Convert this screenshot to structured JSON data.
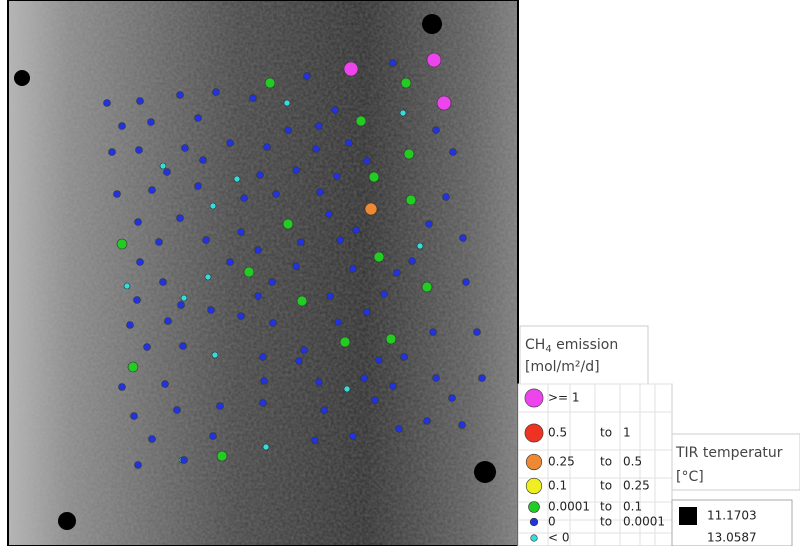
{
  "ch4_legend": {
    "title": "CH",
    "title_subscript": "4",
    "title_rest": " emission",
    "unit": "[mol/m²/d]",
    "classes": [
      {
        "from": ">= 1"
      },
      {
        "from": "0.5",
        "to_word": "to",
        "to": "1"
      },
      {
        "from": "0.25",
        "to_word": "to",
        "to": "0.5"
      },
      {
        "from": "0.1",
        "to_word": "to",
        "to": "0.25"
      },
      {
        "from": "0.0001",
        "to_word": "to",
        "to": "0.1"
      },
      {
        "from": "0",
        "to_word": "to",
        "to": "0.0001"
      },
      {
        "from": "< 0"
      }
    ]
  },
  "tir_legend": {
    "title": "TIR temperatur",
    "unit": "[°C]",
    "entries": [
      "11.1703",
      "13.0587"
    ]
  }
}
